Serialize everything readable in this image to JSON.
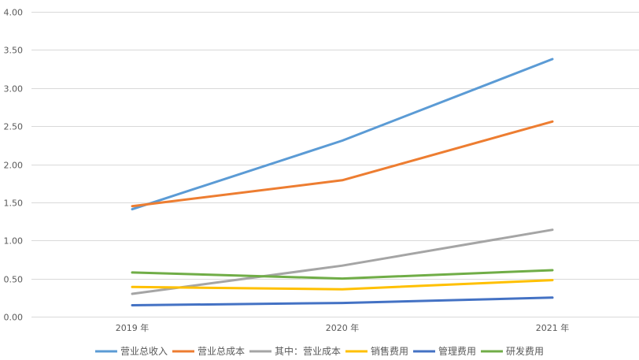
{
  "chart_data": {
    "type": "line",
    "title": "",
    "xlabel": "",
    "ylabel": "",
    "categories": [
      "2019 年",
      "2020 年",
      "2021 年"
    ],
    "ylim": [
      0,
      4
    ],
    "yticks": [
      "0.00",
      "0.50",
      "1.00",
      "1.50",
      "2.00",
      "2.50",
      "3.00",
      "3.50",
      "4.00"
    ],
    "grid": true,
    "legend_position": "bottom",
    "series": [
      {
        "name": "营业总收入",
        "color": "#5b9bd5",
        "values": [
          1.41,
          2.31,
          3.38
        ]
      },
      {
        "name": "营业总成本",
        "color": "#ed7d31",
        "values": [
          1.45,
          1.79,
          2.56
        ]
      },
      {
        "name": "其中：营业成本",
        "color": "#a5a5a5",
        "values": [
          0.3,
          0.67,
          1.14
        ]
      },
      {
        "name": "销售费用",
        "color": "#ffc000",
        "values": [
          0.39,
          0.36,
          0.48
        ]
      },
      {
        "name": "管理费用",
        "color": "#4472c4",
        "values": [
          0.15,
          0.18,
          0.25
        ]
      },
      {
        "name": "研发费用",
        "color": "#70ad47",
        "values": [
          0.58,
          0.5,
          0.61
        ]
      }
    ]
  }
}
